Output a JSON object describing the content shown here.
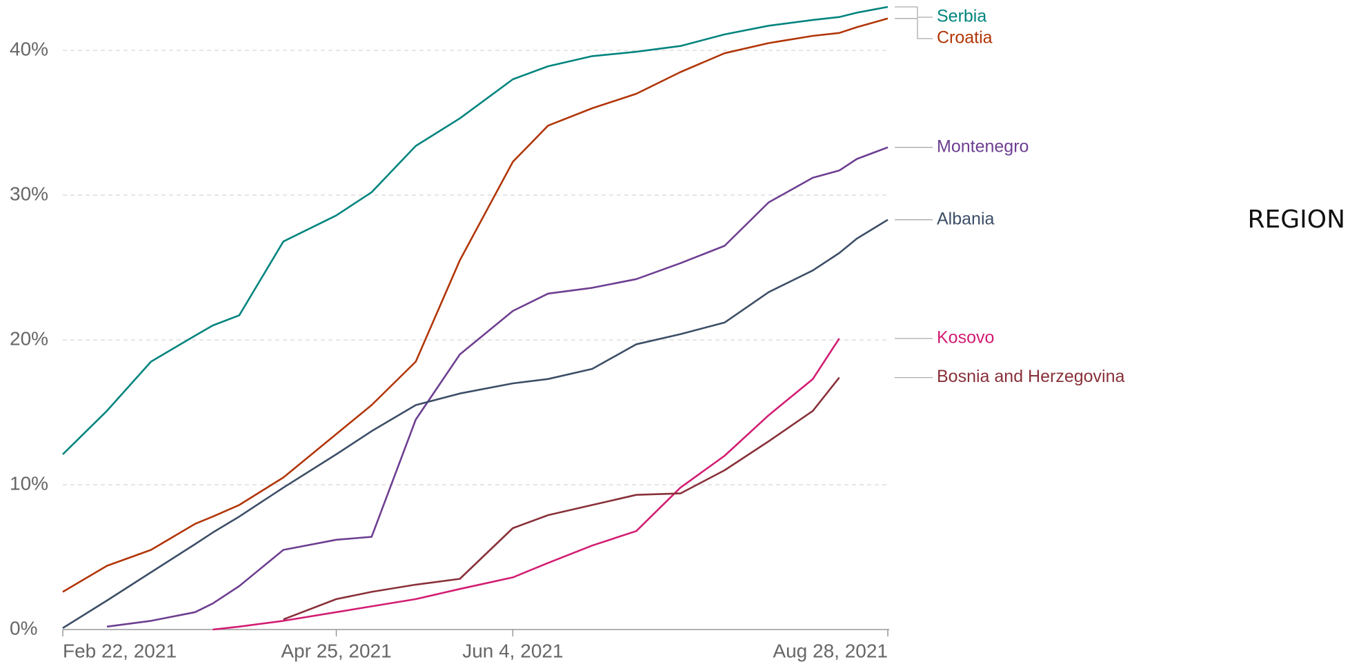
{
  "chart_data": {
    "type": "line",
    "x": [
      "2021-02-22",
      "2021-03-04",
      "2021-03-14",
      "2021-03-24",
      "2021-03-28",
      "2021-04-03",
      "2021-04-13",
      "2021-04-25",
      "2021-05-03",
      "2021-05-13",
      "2021-05-23",
      "2021-06-04",
      "2021-06-12",
      "2021-06-22",
      "2021-07-02",
      "2021-07-12",
      "2021-07-22",
      "2021-08-01",
      "2021-08-11",
      "2021-08-17",
      "2021-08-21",
      "2021-08-28"
    ],
    "series": [
      {
        "name": "Serbia",
        "color": "#00847e",
        "values": [
          12.1,
          15.1,
          18.5,
          20.3,
          21.0,
          21.7,
          26.8,
          28.6,
          30.2,
          33.4,
          35.3,
          38.0,
          38.9,
          39.6,
          39.9,
          40.3,
          41.1,
          41.7,
          42.1,
          42.3,
          42.6,
          43.0
        ]
      },
      {
        "name": "Croatia",
        "color": "#b13507",
        "values": [
          2.6,
          4.4,
          5.5,
          7.3,
          7.8,
          8.6,
          10.5,
          13.5,
          15.5,
          18.5,
          25.5,
          32.3,
          34.8,
          36.0,
          37.0,
          38.5,
          39.8,
          40.5,
          41.0,
          41.2,
          41.6,
          42.2
        ]
      },
      {
        "name": "Montenegro",
        "color": "#6d3e91",
        "values": [
          null,
          0.2,
          0.6,
          1.2,
          1.8,
          3.0,
          5.5,
          6.2,
          6.4,
          14.5,
          19.0,
          22.0,
          23.2,
          23.6,
          24.2,
          25.3,
          26.5,
          29.5,
          31.2,
          31.7,
          32.5,
          33.3
        ]
      },
      {
        "name": "Albania",
        "color": "#3c4e66",
        "values": [
          0.1,
          2.0,
          3.95,
          5.9,
          6.7,
          7.8,
          9.8,
          12.1,
          13.7,
          15.5,
          16.3,
          17.0,
          17.3,
          18.0,
          19.7,
          20.4,
          21.2,
          23.3,
          24.8,
          26.0,
          27.0,
          28.3
        ]
      },
      {
        "name": "Kosovo",
        "color": "#d21c72",
        "values": [
          null,
          null,
          null,
          null,
          0,
          0.2,
          0.6,
          1.2,
          1.6,
          2.1,
          2.8,
          3.6,
          4.6,
          5.8,
          6.8,
          9.8,
          12.0,
          14.8,
          17.3,
          20.1,
          null,
          null
        ]
      },
      {
        "name": "Bosnia and Herzegovina",
        "color": "#883039",
        "values": [
          null,
          null,
          null,
          null,
          null,
          null,
          0.7,
          2.1,
          2.6,
          3.1,
          3.5,
          7.0,
          7.9,
          8.6,
          9.3,
          9.4,
          11.0,
          13.0,
          15.1,
          17.4,
          null,
          null
        ]
      }
    ],
    "xlim": [
      "2021-02-22",
      "2021-08-28"
    ],
    "xticks": [
      {
        "value": "2021-02-22",
        "label": "Feb 22, 2021"
      },
      {
        "value": "2021-04-25",
        "label": "Apr 25, 2021"
      },
      {
        "value": "2021-06-04",
        "label": "Jun 4, 2021"
      },
      {
        "value": "2021-08-28",
        "label": "Aug 28, 2021"
      }
    ],
    "ylim": [
      0,
      43
    ],
    "yticks": [
      {
        "value": 0,
        "label": "0%"
      },
      {
        "value": 10,
        "label": "10%"
      },
      {
        "value": 20,
        "label": "20%"
      },
      {
        "value": 30,
        "label": "30%"
      },
      {
        "value": 40,
        "label": "40%"
      }
    ],
    "grid": true
  },
  "region_button": "REGION"
}
